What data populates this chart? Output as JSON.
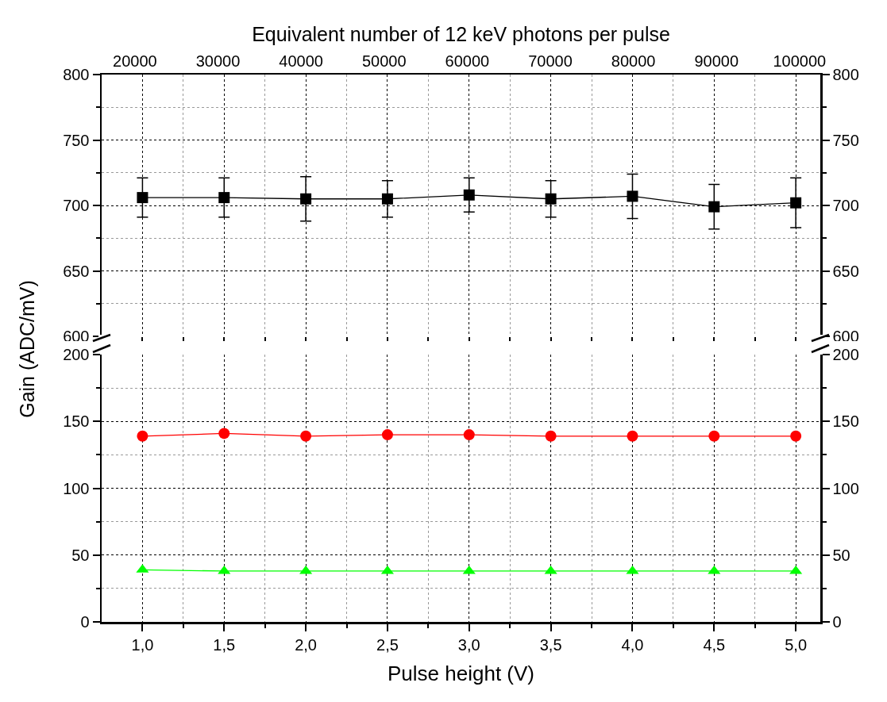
{
  "chart_data": [
    {
      "type": "line",
      "x2label": "Equivalent number of 12 keV photons per pulse",
      "x": [
        1,
        1.5,
        2,
        2.5,
        3,
        3.5,
        4,
        4.5,
        5
      ],
      "xlim": [
        0.75,
        5.15
      ],
      "xticks": [
        1,
        1.5,
        2,
        2.5,
        3,
        3.5,
        4,
        4.5,
        5
      ],
      "x2lim": [
        16000,
        102500
      ],
      "x2ticks": [
        20000,
        30000,
        40000,
        50000,
        60000,
        70000,
        80000,
        90000,
        100000
      ],
      "ylim": [
        600,
        800
      ],
      "yticks": [
        600,
        650,
        700,
        750,
        800
      ],
      "y2lim": [
        600,
        800
      ],
      "y2ticks": [
        600,
        650,
        700,
        750,
        800
      ],
      "tick_labels": "y",
      "grid": true,
      "line_style": "solid",
      "series": [
        {
          "color": "#000000",
          "marker": "square",
          "values": [
            706,
            706,
            705,
            705,
            708,
            705,
            707,
            699,
            702
          ],
          "errors": [
            15,
            15,
            17,
            14,
            13,
            14,
            17,
            17,
            19
          ]
        }
      ]
    },
    {
      "type": "line",
      "xlabel": "Pulse height (V)",
      "ylabel": "Gain (ADC/mV)",
      "x": [
        1,
        1.5,
        2,
        2.5,
        3,
        3.5,
        4,
        4.5,
        5
      ],
      "xlim": [
        0.75,
        5.15
      ],
      "xticks": [
        {
          "value": 1,
          "label": "1,0"
        },
        {
          "value": 1.5,
          "label": "1,5"
        },
        {
          "value": 2,
          "label": "2,0"
        },
        {
          "value": 2.5,
          "label": "2,5"
        },
        {
          "value": 3,
          "label": "3,0"
        },
        {
          "value": 3.5,
          "label": "3,5"
        },
        {
          "value": 4,
          "label": "4,0"
        },
        {
          "value": 4.5,
          "label": "4,5"
        },
        {
          "value": 5,
          "label": "5,0"
        }
      ],
      "ylim": [
        0,
        200
      ],
      "yticks": [
        0,
        50,
        100,
        150,
        200
      ],
      "y2lim": [
        0,
        200
      ],
      "y2ticks": [
        0,
        50,
        100,
        150,
        200
      ],
      "grid": true,
      "line_style": "solid",
      "series": [
        {
          "color": "#ff0000",
          "marker": "circle",
          "values": [
            139,
            141,
            139,
            140,
            140,
            139,
            139,
            139,
            139
          ]
        },
        {
          "color": "#00ff00",
          "marker": "triangle",
          "values": [
            39,
            38,
            38,
            38,
            38,
            38,
            38,
            38,
            38
          ]
        }
      ]
    }
  ]
}
